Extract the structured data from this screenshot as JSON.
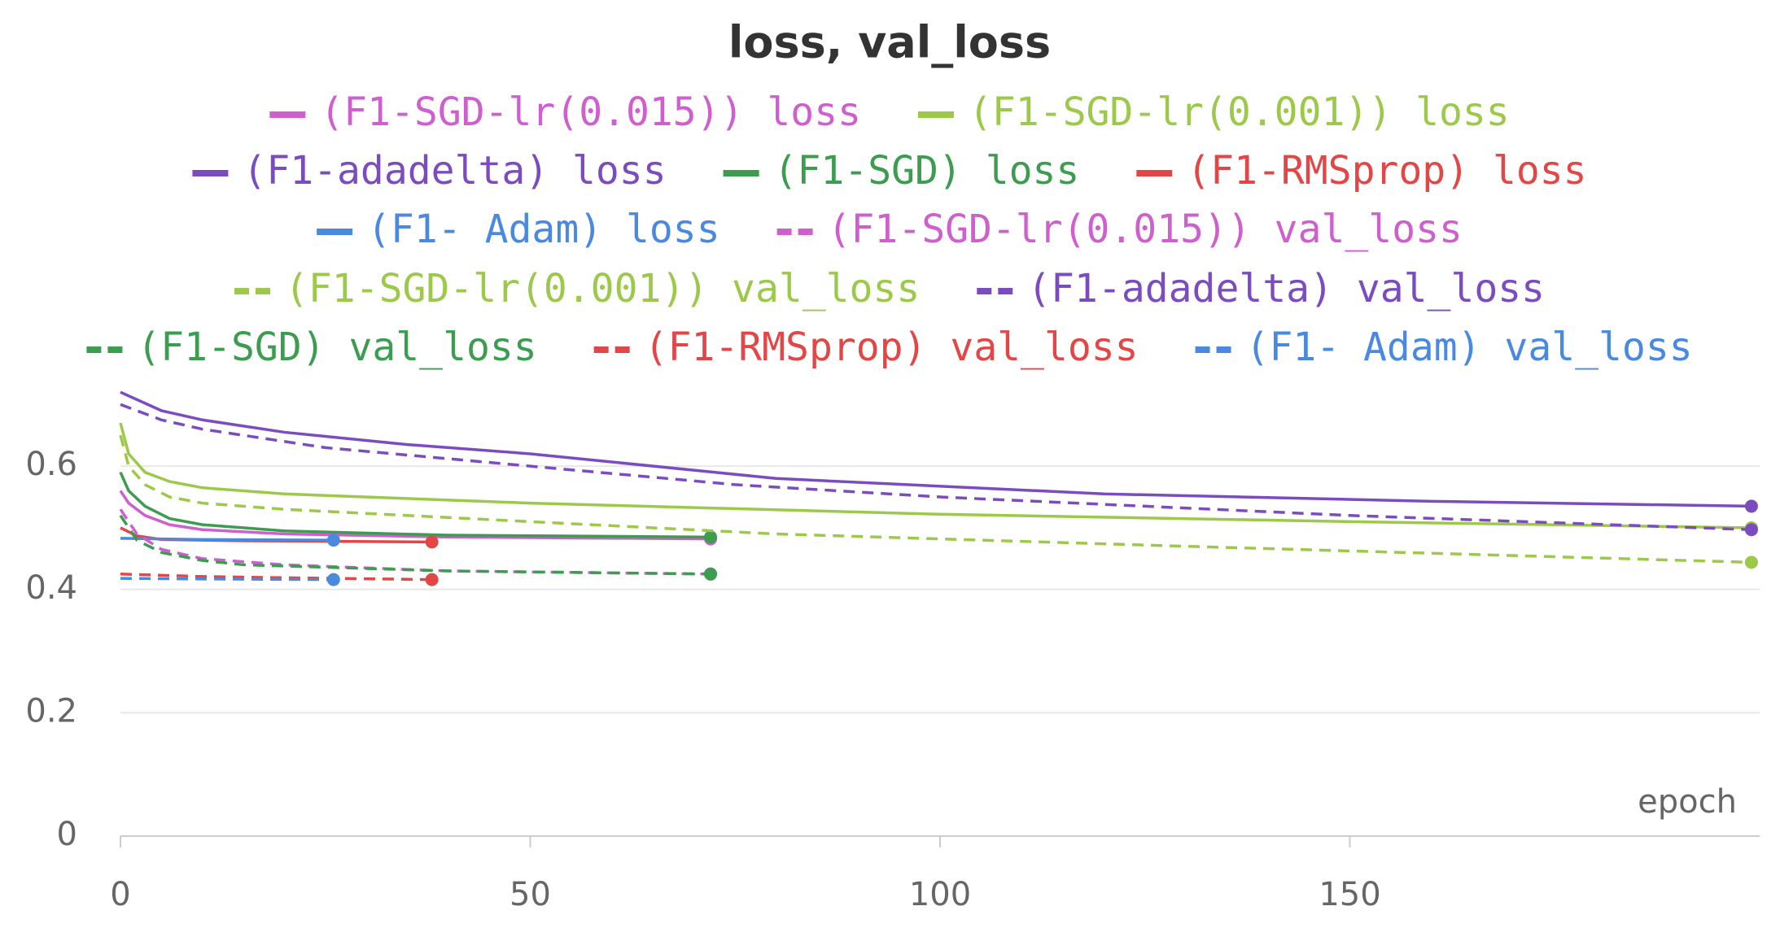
{
  "chart_data": {
    "type": "line",
    "title": "loss, val_loss",
    "xlabel": "epoch",
    "xlim": [
      0,
      200
    ],
    "xticks": [
      0,
      50,
      100,
      150
    ],
    "ylim": [
      0,
      0.74
    ],
    "yticks": [
      0,
      0.2,
      0.4,
      0.6
    ],
    "grid": true,
    "series": [
      {
        "name": "(F1-SGD-lr(0.015)) loss",
        "color": "#cf5fcf",
        "style": "solid",
        "x": [
          0,
          1,
          3,
          6,
          10,
          20,
          40,
          72
        ],
        "values": [
          0.56,
          0.54,
          0.52,
          0.505,
          0.497,
          0.49,
          0.485,
          0.482
        ]
      },
      {
        "name": "(F1-SGD-lr(0.001)) loss",
        "color": "#9dc94a",
        "style": "solid",
        "x": [
          0,
          1,
          3,
          6,
          10,
          20,
          50,
          100,
          150,
          199
        ],
        "values": [
          0.67,
          0.62,
          0.59,
          0.575,
          0.565,
          0.555,
          0.54,
          0.522,
          0.51,
          0.5
        ]
      },
      {
        "name": "(F1-adadelta) loss",
        "color": "#7b4cc0",
        "style": "solid",
        "x": [
          0,
          5,
          10,
          20,
          35,
          50,
          80,
          120,
          160,
          199
        ],
        "values": [
          0.72,
          0.69,
          0.675,
          0.655,
          0.635,
          0.62,
          0.58,
          0.555,
          0.543,
          0.535
        ]
      },
      {
        "name": "(F1-SGD) loss",
        "color": "#3c9c50",
        "style": "solid",
        "x": [
          0,
          1,
          3,
          6,
          10,
          20,
          40,
          72
        ],
        "values": [
          0.59,
          0.56,
          0.535,
          0.515,
          0.505,
          0.495,
          0.488,
          0.485
        ]
      },
      {
        "name": "(F1-RMSprop) loss",
        "color": "#e24646",
        "style": "solid",
        "x": [
          0,
          2,
          5,
          15,
          38
        ],
        "values": [
          0.5,
          0.487,
          0.481,
          0.479,
          0.477
        ]
      },
      {
        "name": "(F1- Adam) loss",
        "color": "#4a89e0",
        "style": "solid",
        "x": [
          0,
          10,
          26
        ],
        "values": [
          0.483,
          0.481,
          0.48
        ]
      },
      {
        "name": "(F1-SGD-lr(0.015)) val_loss",
        "color": "#cf5fcf",
        "style": "dashed",
        "x": [
          0,
          2,
          5,
          10,
          20,
          40,
          72
        ],
        "values": [
          0.53,
          0.49,
          0.465,
          0.45,
          0.44,
          0.43,
          0.425
        ]
      },
      {
        "name": "(F1-SGD-lr(0.001)) val_loss",
        "color": "#9dc94a",
        "style": "dashed",
        "x": [
          0,
          1,
          3,
          6,
          10,
          20,
          50,
          80,
          130,
          199
        ],
        "values": [
          0.65,
          0.6,
          0.57,
          0.55,
          0.54,
          0.53,
          0.51,
          0.49,
          0.47,
          0.444
        ]
      },
      {
        "name": "(F1-adadelta) val_loss",
        "color": "#7b4cc0",
        "style": "dashed",
        "x": [
          0,
          5,
          10,
          25,
          50,
          75,
          100,
          150,
          199
        ],
        "values": [
          0.7,
          0.675,
          0.66,
          0.63,
          0.6,
          0.57,
          0.55,
          0.52,
          0.497
        ]
      },
      {
        "name": "(F1-SGD) val_loss",
        "color": "#3c9c50",
        "style": "dashed",
        "x": [
          0,
          2,
          5,
          10,
          15,
          40,
          72
        ],
        "values": [
          0.52,
          0.48,
          0.46,
          0.447,
          0.44,
          0.43,
          0.425
        ]
      },
      {
        "name": "(F1-RMSprop) val_loss",
        "color": "#e24646",
        "style": "dashed",
        "x": [
          0,
          10,
          20,
          38
        ],
        "values": [
          0.425,
          0.421,
          0.419,
          0.416
        ]
      },
      {
        "name": "(F1- Adam) val_loss",
        "color": "#4a89e0",
        "style": "dashed",
        "x": [
          0,
          10,
          26
        ],
        "values": [
          0.418,
          0.417,
          0.416
        ]
      }
    ]
  }
}
